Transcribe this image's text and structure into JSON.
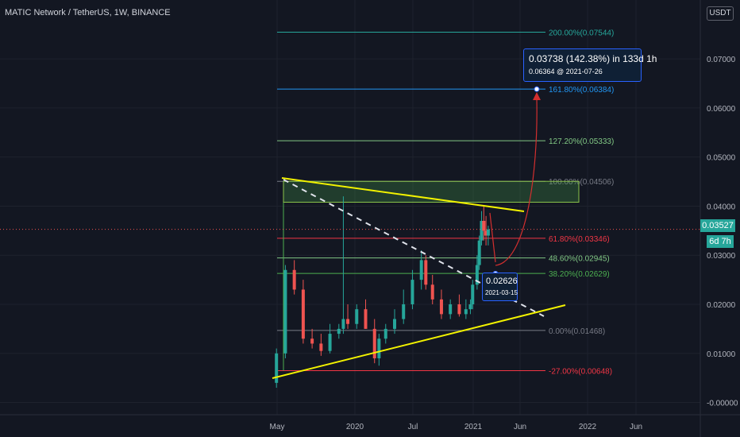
{
  "header": {
    "title": "MATIC Network / TetherUS, 1W, BINANCE",
    "currency_button": "USDT"
  },
  "price_axis": {
    "ticks": [
      "0.07000",
      "0.06000",
      "0.05000",
      "0.04000",
      "0.03000",
      "0.02000",
      "0.01000",
      "-0.00000"
    ],
    "current_price": "0.03527",
    "countdown": "6d 7h"
  },
  "time_axis": {
    "ticks": [
      "May",
      "2020",
      "Jul",
      "2021",
      "Jun",
      "2022",
      "Jun"
    ]
  },
  "projection_label": {
    "line1": "0.03738 (142.38%) in 133d 1h",
    "line2": "0.06364 @ 2021-07-26"
  },
  "point_label": {
    "line1": "0.02626",
    "line2": "2021-03-15"
  },
  "fib_levels": [
    {
      "label": "200.00%(0.07544)",
      "color": "#26a69a"
    },
    {
      "label": "161.80%(0.06384)",
      "color": "#2196f3"
    },
    {
      "label": "127.20%(0.05333)",
      "color": "#81c784"
    },
    {
      "label": "100.00%(0.04506)",
      "color": "#787b86"
    },
    {
      "label": "61.80%(0.03346)",
      "color": "#f23645"
    },
    {
      "label": "48.60%(0.02945)",
      "color": "#81c784"
    },
    {
      "label": "38.20%(0.02629)",
      "color": "#4caf50"
    },
    {
      "label": "0.00%(0.01468)",
      "color": "#787b86"
    },
    {
      "label": "-27.00%(0.00648)",
      "color": "#f23645"
    }
  ],
  "colors": {
    "up": "#26a69a",
    "down": "#ef5350",
    "trend": "#f2f200",
    "background": "#131722",
    "grid": "#1e222d"
  },
  "chart_data": {
    "type": "candlestick",
    "title": "MATIC Network / TetherUS, 1W, BINANCE",
    "ylim": [
      -0.0025,
      0.082
    ],
    "y_ticks": [
      0.07,
      0.06,
      0.05,
      0.04,
      0.03,
      0.02,
      0.01,
      0
    ],
    "x": [
      "2019-04-29",
      "2019-05-27",
      "2019-06-24",
      "2019-07-22",
      "2019-08-19",
      "2019-09-16",
      "2019-10-14",
      "2019-11-11",
      "2019-11-25",
      "2019-12-09",
      "2020-01-06",
      "2020-02-03",
      "2020-03-02",
      "2020-03-16",
      "2020-04-06",
      "2020-05-04",
      "2020-06-01",
      "2020-06-29",
      "2020-07-27",
      "2020-08-10",
      "2020-08-31",
      "2020-09-28",
      "2020-10-26",
      "2020-11-23",
      "2020-12-14",
      "2020-12-28",
      "2021-01-04",
      "2021-01-18",
      "2021-01-25",
      "2021-02-01",
      "2021-02-08",
      "2021-02-15",
      "2021-02-22"
    ],
    "open": [
      0.004,
      0.01,
      0.027,
      0.023,
      0.013,
      0.012,
      0.0105,
      0.014,
      0.015,
      0.017,
      0.016,
      0.019,
      0.015,
      0.009,
      0.013,
      0.015,
      0.017,
      0.02,
      0.025,
      0.029,
      0.024,
      0.021,
      0.018,
      0.02,
      0.018,
      0.019,
      0.02,
      0.024,
      0.028,
      0.033,
      0.037,
      0.035,
      0.034
    ],
    "high": [
      0.011,
      0.028,
      0.029,
      0.025,
      0.015,
      0.014,
      0.016,
      0.016,
      0.042,
      0.02,
      0.02,
      0.021,
      0.017,
      0.014,
      0.016,
      0.019,
      0.023,
      0.027,
      0.031,
      0.03,
      0.026,
      0.023,
      0.021,
      0.022,
      0.021,
      0.021,
      0.025,
      0.03,
      0.034,
      0.039,
      0.04,
      0.038,
      0.036
    ],
    "low": [
      0.003,
      0.009,
      0.022,
      0.012,
      0.011,
      0.0095,
      0.01,
      0.013,
      0.014,
      0.015,
      0.015,
      0.015,
      0.008,
      0.0075,
      0.012,
      0.014,
      0.016,
      0.019,
      0.023,
      0.023,
      0.02,
      0.017,
      0.017,
      0.0175,
      0.017,
      0.018,
      0.019,
      0.023,
      0.027,
      0.032,
      0.033,
      0.032,
      0.032
    ],
    "close": [
      0.01,
      0.027,
      0.023,
      0.013,
      0.012,
      0.0105,
      0.014,
      0.015,
      0.017,
      0.016,
      0.019,
      0.015,
      0.009,
      0.013,
      0.015,
      0.017,
      0.02,
      0.025,
      0.029,
      0.024,
      0.021,
      0.018,
      0.02,
      0.018,
      0.019,
      0.02,
      0.024,
      0.028,
      0.033,
      0.037,
      0.035,
      0.034,
      0.03527
    ]
  }
}
